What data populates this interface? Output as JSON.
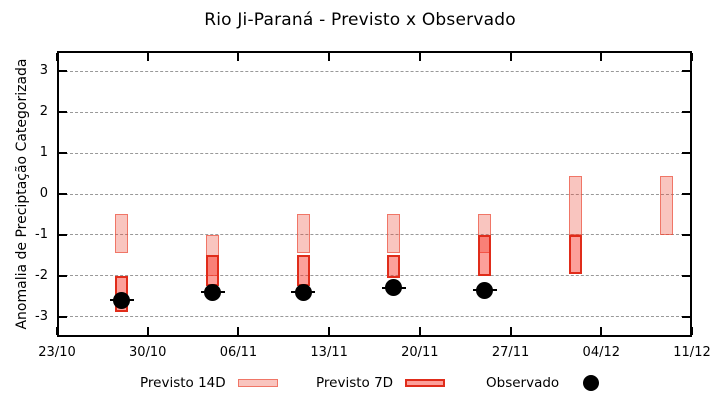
{
  "title": "Rio Ji-Paraná - Previsto x Observado",
  "legend": {
    "items": [
      {
        "label": "Previsto 14D",
        "swatch": "interval-14d"
      },
      {
        "label": "Previsto 7D",
        "swatch": "interval-7d"
      },
      {
        "label": "Observado",
        "swatch": "point"
      }
    ]
  },
  "chart_data": {
    "type": "bar",
    "subtype": "vertical-interval-bars-with-observation-points",
    "title": "Rio Ji-Paraná - Previsto x Observado",
    "xlabel": "",
    "ylabel": "Anomalia de Preciptação Categorizada",
    "ylim": [
      -3.5,
      3.5
    ],
    "yticks": [
      3,
      2,
      1,
      0,
      -1,
      -2,
      -3
    ],
    "grid": "horizontal-dashed-only",
    "legend_position": "bottom",
    "x_axis_days_range": [
      0,
      49
    ],
    "xticks": [
      {
        "day": 0,
        "label": "23/10"
      },
      {
        "day": 7,
        "label": "30/10"
      },
      {
        "day": 14,
        "label": "06/11"
      },
      {
        "day": 21,
        "label": "13/11"
      },
      {
        "day": 28,
        "label": "20/11"
      },
      {
        "day": 35,
        "label": "27/11"
      },
      {
        "day": 42,
        "label": "04/12"
      },
      {
        "day": 49,
        "label": "11/12"
      }
    ],
    "series": [
      {
        "name": "Previsto 14D",
        "type": "interval",
        "intervals": [
          {
            "day": 5,
            "hi": -0.5,
            "lo": -1.45
          },
          {
            "day": 12,
            "hi": -1.0,
            "lo": -2.0
          },
          {
            "day": 19,
            "hi": -0.5,
            "lo": -1.45
          },
          {
            "day": 26,
            "hi": -0.5,
            "lo": -1.45
          },
          {
            "day": 33,
            "hi": -0.5,
            "lo": -1.45
          },
          {
            "day": 40,
            "hi": 0.45,
            "lo": -1.0
          },
          {
            "day": 47,
            "hi": 0.45,
            "lo": -1.0
          }
        ]
      },
      {
        "name": "Previsto 7D",
        "type": "interval",
        "intervals": [
          {
            "day": 5,
            "hi": -2.0,
            "lo": -2.9
          },
          {
            "day": 12,
            "hi": -1.5,
            "lo": -2.25
          },
          {
            "day": 19,
            "hi": -1.5,
            "lo": -2.25
          },
          {
            "day": 26,
            "hi": -1.5,
            "lo": -2.05
          },
          {
            "day": 33,
            "hi": -1.0,
            "lo": -2.0
          },
          {
            "day": 40,
            "hi": -1.0,
            "lo": -1.95
          }
        ]
      },
      {
        "name": "Observado",
        "type": "point",
        "points": [
          {
            "day": 5,
            "value": -2.6
          },
          {
            "day": 12,
            "value": -2.4
          },
          {
            "day": 19,
            "value": -2.4
          },
          {
            "day": 26,
            "value": -2.3
          },
          {
            "day": 33,
            "value": -2.35
          }
        ]
      }
    ],
    "colors": {
      "previsto_14d_fill": "rgba(235,75,55,0.32)",
      "previsto_14d_border": "rgba(235,75,55,0.65)",
      "previsto_7d_fill": "rgba(248,45,30,0.45)",
      "previsto_7d_border": "#e02c1a",
      "observado": "#000000",
      "grid": "#999999",
      "axis": "#000000"
    }
  }
}
